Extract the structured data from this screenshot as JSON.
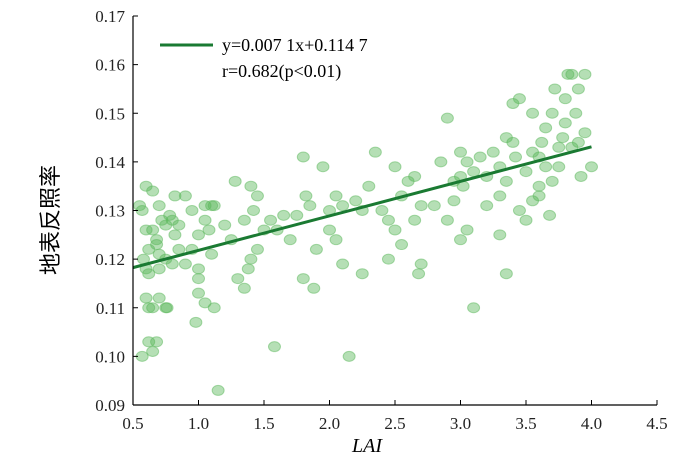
{
  "chart_data": {
    "type": "scatter",
    "xlabel": "LAI",
    "ylabel": "地表反照率",
    "xlim": [
      0.5,
      4.5
    ],
    "ylim": [
      0.09,
      0.17
    ],
    "xticks": [
      "0.5",
      "1.0",
      "1.5",
      "2.0",
      "2.5",
      "3.0",
      "3.5",
      "4.0",
      "4.5"
    ],
    "yticks": [
      "0.09",
      "0.10",
      "0.11",
      "0.12",
      "0.13",
      "0.14",
      "0.15",
      "0.16",
      "0.17"
    ],
    "grid": false,
    "legend": {
      "placement": "top-left",
      "equation": "y=0.007 1x+0.114 7",
      "stats": "r=0.682(p<0.01)"
    },
    "fit": {
      "slope": 0.0071,
      "intercept": 0.1147,
      "x_range": [
        0.5,
        4.0
      ]
    },
    "colors": {
      "points": "#5cb85c",
      "line": "#1a7a32"
    },
    "points": [
      [
        0.55,
        0.131
      ],
      [
        0.57,
        0.13
      ],
      [
        0.6,
        0.135
      ],
      [
        0.65,
        0.134
      ],
      [
        0.6,
        0.126
      ],
      [
        0.62,
        0.122
      ],
      [
        0.65,
        0.126
      ],
      [
        0.68,
        0.124
      ],
      [
        0.68,
        0.123
      ],
      [
        0.7,
        0.121
      ],
      [
        0.72,
        0.128
      ],
      [
        0.7,
        0.131
      ],
      [
        0.75,
        0.127
      ],
      [
        0.78,
        0.129
      ],
      [
        0.8,
        0.128
      ],
      [
        0.82,
        0.125
      ],
      [
        0.85,
        0.127
      ],
      [
        0.6,
        0.118
      ],
      [
        0.62,
        0.117
      ],
      [
        0.7,
        0.118
      ],
      [
        0.75,
        0.12
      ],
      [
        0.8,
        0.119
      ],
      [
        0.6,
        0.112
      ],
      [
        0.62,
        0.11
      ],
      [
        0.65,
        0.11
      ],
      [
        0.7,
        0.112
      ],
      [
        0.75,
        0.11
      ],
      [
        0.76,
        0.11
      ],
      [
        0.62,
        0.103
      ],
      [
        0.68,
        0.103
      ],
      [
        0.65,
        0.101
      ],
      [
        0.57,
        0.1
      ],
      [
        0.58,
        0.12
      ],
      [
        0.82,
        0.133
      ],
      [
        0.9,
        0.133
      ],
      [
        0.95,
        0.13
      ],
      [
        0.85,
        0.122
      ],
      [
        0.9,
        0.119
      ],
      [
        0.95,
        0.122
      ],
      [
        1.0,
        0.125
      ],
      [
        1.0,
        0.116
      ],
      [
        1.05,
        0.131
      ],
      [
        1.05,
        0.128
      ],
      [
        1.1,
        0.131
      ],
      [
        1.08,
        0.126
      ],
      [
        1.1,
        0.121
      ],
      [
        1.0,
        0.118
      ],
      [
        1.0,
        0.113
      ],
      [
        1.05,
        0.111
      ],
      [
        0.98,
        0.107
      ],
      [
        1.12,
        0.11
      ],
      [
        1.15,
        0.093
      ],
      [
        1.12,
        0.131
      ],
      [
        1.2,
        0.127
      ],
      [
        1.25,
        0.124
      ],
      [
        1.28,
        0.136
      ],
      [
        1.35,
        0.128
      ],
      [
        1.4,
        0.135
      ],
      [
        1.45,
        0.133
      ],
      [
        1.42,
        0.13
      ],
      [
        1.5,
        0.126
      ],
      [
        1.45,
        0.122
      ],
      [
        1.38,
        0.118
      ],
      [
        1.35,
        0.114
      ],
      [
        1.3,
        0.116
      ],
      [
        1.4,
        0.12
      ],
      [
        1.55,
        0.128
      ],
      [
        1.6,
        0.126
      ],
      [
        1.58,
        0.102
      ],
      [
        1.65,
        0.129
      ],
      [
        1.7,
        0.124
      ],
      [
        1.75,
        0.129
      ],
      [
        1.8,
        0.141
      ],
      [
        1.82,
        0.133
      ],
      [
        1.85,
        0.131
      ],
      [
        1.8,
        0.116
      ],
      [
        1.88,
        0.114
      ],
      [
        1.9,
        0.122
      ],
      [
        1.95,
        0.139
      ],
      [
        2.0,
        0.13
      ],
      [
        2.05,
        0.133
      ],
      [
        2.1,
        0.131
      ],
      [
        2.15,
        0.1
      ],
      [
        2.05,
        0.124
      ],
      [
        2.0,
        0.126
      ],
      [
        2.1,
        0.119
      ],
      [
        2.2,
        0.132
      ],
      [
        2.25,
        0.13
      ],
      [
        2.25,
        0.117
      ],
      [
        2.3,
        0.135
      ],
      [
        2.35,
        0.142
      ],
      [
        2.4,
        0.13
      ],
      [
        2.45,
        0.128
      ],
      [
        2.5,
        0.139
      ],
      [
        2.55,
        0.133
      ],
      [
        2.5,
        0.126
      ],
      [
        2.45,
        0.12
      ],
      [
        2.55,
        0.123
      ],
      [
        2.6,
        0.136
      ],
      [
        2.65,
        0.137
      ],
      [
        2.7,
        0.131
      ],
      [
        2.65,
        0.128
      ],
      [
        2.7,
        0.119
      ],
      [
        2.68,
        0.117
      ],
      [
        2.8,
        0.131
      ],
      [
        2.85,
        0.14
      ],
      [
        2.9,
        0.149
      ],
      [
        2.9,
        0.128
      ],
      [
        2.95,
        0.132
      ],
      [
        2.95,
        0.136
      ],
      [
        3.0,
        0.137
      ],
      [
        3.0,
        0.142
      ],
      [
        3.02,
        0.135
      ],
      [
        3.05,
        0.14
      ],
      [
        3.0,
        0.124
      ],
      [
        3.05,
        0.126
      ],
      [
        3.1,
        0.11
      ],
      [
        3.1,
        0.138
      ],
      [
        3.15,
        0.141
      ],
      [
        3.2,
        0.137
      ],
      [
        3.2,
        0.131
      ],
      [
        3.25,
        0.142
      ],
      [
        3.3,
        0.139
      ],
      [
        3.3,
        0.133
      ],
      [
        3.3,
        0.125
      ],
      [
        3.35,
        0.145
      ],
      [
        3.35,
        0.136
      ],
      [
        3.4,
        0.144
      ],
      [
        3.4,
        0.152
      ],
      [
        3.45,
        0.153
      ],
      [
        3.42,
        0.141
      ],
      [
        3.45,
        0.13
      ],
      [
        3.5,
        0.138
      ],
      [
        3.5,
        0.128
      ],
      [
        3.55,
        0.142
      ],
      [
        3.55,
        0.132
      ],
      [
        3.6,
        0.141
      ],
      [
        3.6,
        0.135
      ],
      [
        3.62,
        0.144
      ],
      [
        3.65,
        0.147
      ],
      [
        3.65,
        0.139
      ],
      [
        3.7,
        0.15
      ],
      [
        3.7,
        0.136
      ],
      [
        3.72,
        0.155
      ],
      [
        3.75,
        0.143
      ],
      [
        3.78,
        0.145
      ],
      [
        3.8,
        0.153
      ],
      [
        3.8,
        0.148
      ],
      [
        3.82,
        0.158
      ],
      [
        3.85,
        0.158
      ],
      [
        3.85,
        0.143
      ],
      [
        3.88,
        0.15
      ],
      [
        3.9,
        0.155
      ],
      [
        3.9,
        0.144
      ],
      [
        3.92,
        0.137
      ],
      [
        3.95,
        0.158
      ],
      [
        3.95,
        0.146
      ],
      [
        4.0,
        0.139
      ],
      [
        3.35,
        0.117
      ],
      [
        3.55,
        0.15
      ],
      [
        3.6,
        0.133
      ],
      [
        3.68,
        0.129
      ],
      [
        3.75,
        0.139
      ]
    ]
  }
}
